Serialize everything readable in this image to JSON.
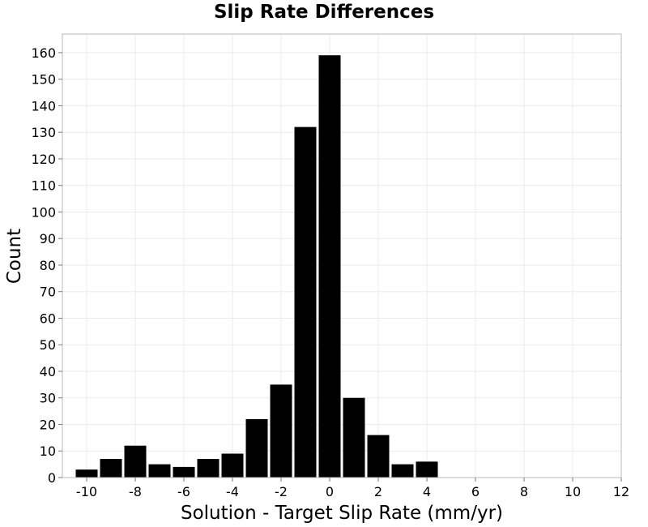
{
  "chart_data": {
    "type": "bar",
    "title": "Slip Rate Differences",
    "xlabel": "Solution - Target Slip Rate (mm/yr)",
    "ylabel": "Count",
    "xlim": [
      -11,
      12
    ],
    "ylim": [
      0,
      167
    ],
    "x_ticks": [
      -10,
      -8,
      -6,
      -4,
      -2,
      0,
      2,
      4,
      6,
      8,
      10,
      12
    ],
    "y_ticks": [
      0,
      10,
      20,
      30,
      40,
      50,
      60,
      70,
      80,
      90,
      100,
      110,
      120,
      130,
      140,
      150,
      160
    ],
    "bin_width": 1,
    "grid": true,
    "bar_color": "#000000",
    "bins": [
      {
        "x": -10,
        "count": 3
      },
      {
        "x": -9,
        "count": 7
      },
      {
        "x": -8,
        "count": 12
      },
      {
        "x": -7,
        "count": 5
      },
      {
        "x": -6,
        "count": 4
      },
      {
        "x": -5,
        "count": 7
      },
      {
        "x": -4,
        "count": 9
      },
      {
        "x": -3,
        "count": 22
      },
      {
        "x": -2,
        "count": 35
      },
      {
        "x": -1,
        "count": 132
      },
      {
        "x": 0,
        "count": 159
      },
      {
        "x": 1,
        "count": 30
      },
      {
        "x": 2,
        "count": 16
      },
      {
        "x": 3,
        "count": 5
      },
      {
        "x": 4,
        "count": 6
      }
    ]
  }
}
